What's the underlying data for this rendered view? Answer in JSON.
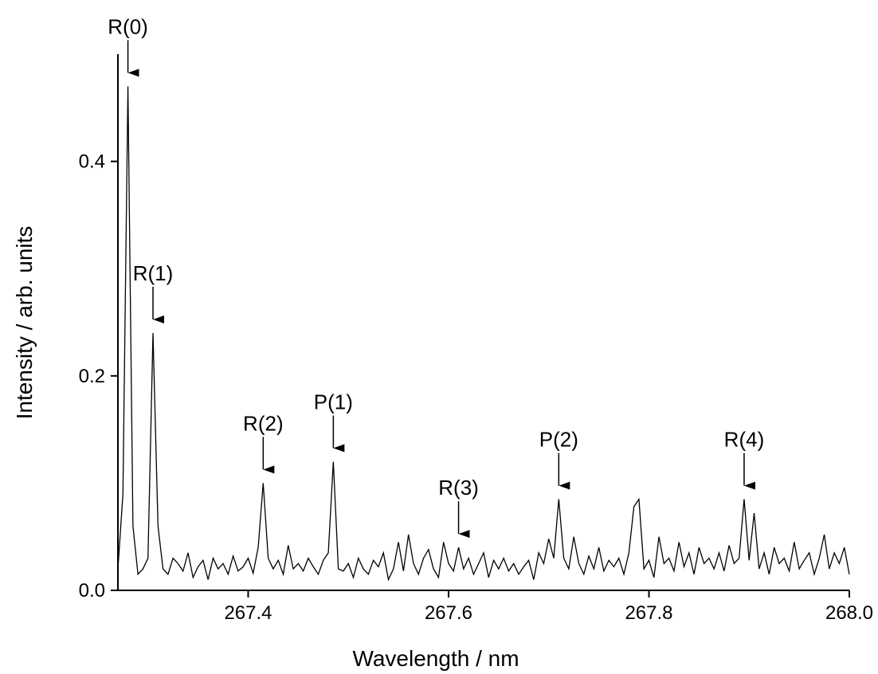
{
  "chart_data": {
    "type": "line",
    "xlabel": "Wavelength / nm",
    "ylabel": "Intensity / arb. units",
    "color": "#000000",
    "xlim": [
      267.27,
      268.0
    ],
    "ylim": [
      0,
      0.5
    ],
    "xticks": [
      267.4,
      267.6,
      267.8,
      {
        "value": 268,
        "label": "268.0"
      }
    ],
    "yticks": [
      {
        "value": 0,
        "label": "0.0"
      },
      0.2,
      0.4
    ],
    "x": [
      267.27,
      267.275,
      267.28,
      267.285,
      267.29,
      267.295,
      267.3,
      267.305,
      267.31,
      267.315,
      267.32,
      267.325,
      267.33,
      267.335,
      267.34,
      267.345,
      267.35,
      267.355,
      267.36,
      267.365,
      267.37,
      267.375,
      267.38,
      267.385,
      267.39,
      267.395,
      267.4,
      267.405,
      267.41,
      267.415,
      267.42,
      267.425,
      267.43,
      267.435,
      267.44,
      267.445,
      267.45,
      267.455,
      267.46,
      267.465,
      267.47,
      267.475,
      267.48,
      267.485,
      267.49,
      267.495,
      267.5,
      267.505,
      267.51,
      267.515,
      267.52,
      267.525,
      267.53,
      267.535,
      267.54,
      267.545,
      267.55,
      267.555,
      267.56,
      267.565,
      267.57,
      267.575,
      267.58,
      267.585,
      267.59,
      267.595,
      267.6,
      267.605,
      267.61,
      267.615,
      267.62,
      267.625,
      267.63,
      267.635,
      267.64,
      267.645,
      267.65,
      267.655,
      267.66,
      267.665,
      267.67,
      267.675,
      267.68,
      267.685,
      267.69,
      267.695,
      267.7,
      267.705,
      267.71,
      267.715,
      267.72,
      267.725,
      267.73,
      267.735,
      267.74,
      267.745,
      267.75,
      267.755,
      267.76,
      267.765,
      267.77,
      267.775,
      267.78,
      267.785,
      267.79,
      267.795,
      267.8,
      267.805,
      267.81,
      267.815,
      267.82,
      267.825,
      267.83,
      267.835,
      267.84,
      267.845,
      267.85,
      267.855,
      267.86,
      267.865,
      267.87,
      267.875,
      267.88,
      267.885,
      267.89,
      267.895,
      267.9,
      267.905,
      267.91,
      267.915,
      267.92,
      267.925,
      267.93,
      267.935,
      267.94,
      267.945,
      267.95,
      267.955,
      267.96,
      267.965,
      267.97,
      267.975,
      267.98,
      267.985,
      267.99,
      267.995,
      268.0
    ],
    "values": [
      0.02,
      0.09,
      0.47,
      0.06,
      0.015,
      0.02,
      0.03,
      0.24,
      0.06,
      0.02,
      0.015,
      0.03,
      0.025,
      0.018,
      0.035,
      0.012,
      0.022,
      0.028,
      0.01,
      0.03,
      0.02,
      0.025,
      0.015,
      0.032,
      0.018,
      0.022,
      0.03,
      0.016,
      0.04,
      0.1,
      0.03,
      0.02,
      0.028,
      0.015,
      0.042,
      0.02,
      0.025,
      0.018,
      0.03,
      0.022,
      0.015,
      0.028,
      0.035,
      0.12,
      0.02,
      0.018,
      0.025,
      0.012,
      0.03,
      0.02,
      0.015,
      0.028,
      0.022,
      0.035,
      0.01,
      0.02,
      0.045,
      0.018,
      0.052,
      0.025,
      0.015,
      0.03,
      0.038,
      0.02,
      0.012,
      0.045,
      0.025,
      0.018,
      0.04,
      0.02,
      0.03,
      0.015,
      0.025,
      0.035,
      0.012,
      0.028,
      0.02,
      0.03,
      0.018,
      0.025,
      0.015,
      0.022,
      0.028,
      0.01,
      0.035,
      0.025,
      0.048,
      0.03,
      0.085,
      0.03,
      0.02,
      0.05,
      0.025,
      0.015,
      0.032,
      0.02,
      0.04,
      0.018,
      0.028,
      0.022,
      0.03,
      0.015,
      0.035,
      0.078,
      0.085,
      0.02,
      0.028,
      0.012,
      0.05,
      0.025,
      0.03,
      0.018,
      0.045,
      0.022,
      0.035,
      0.015,
      0.04,
      0.025,
      0.03,
      0.02,
      0.035,
      0.018,
      0.042,
      0.025,
      0.03,
      0.085,
      0.028,
      0.072,
      0.02,
      0.035,
      0.015,
      0.04,
      0.025,
      0.03,
      0.018,
      0.045,
      0.02,
      0.028,
      0.035,
      0.015,
      0.03,
      0.052,
      0.02,
      0.035,
      0.025,
      0.04,
      0.015
    ],
    "annotations": [
      {
        "text": "R(0)",
        "x": 267.28
      },
      {
        "text": "R(1)",
        "x": 267.305
      },
      {
        "text": "R(2)",
        "x": 267.415
      },
      {
        "text": "P(1)",
        "x": 267.485
      },
      {
        "text": "R(3)",
        "x": 267.61
      },
      {
        "text": "P(2)",
        "x": 267.71
      },
      {
        "text": "R(4)",
        "x": 267.895
      }
    ]
  }
}
